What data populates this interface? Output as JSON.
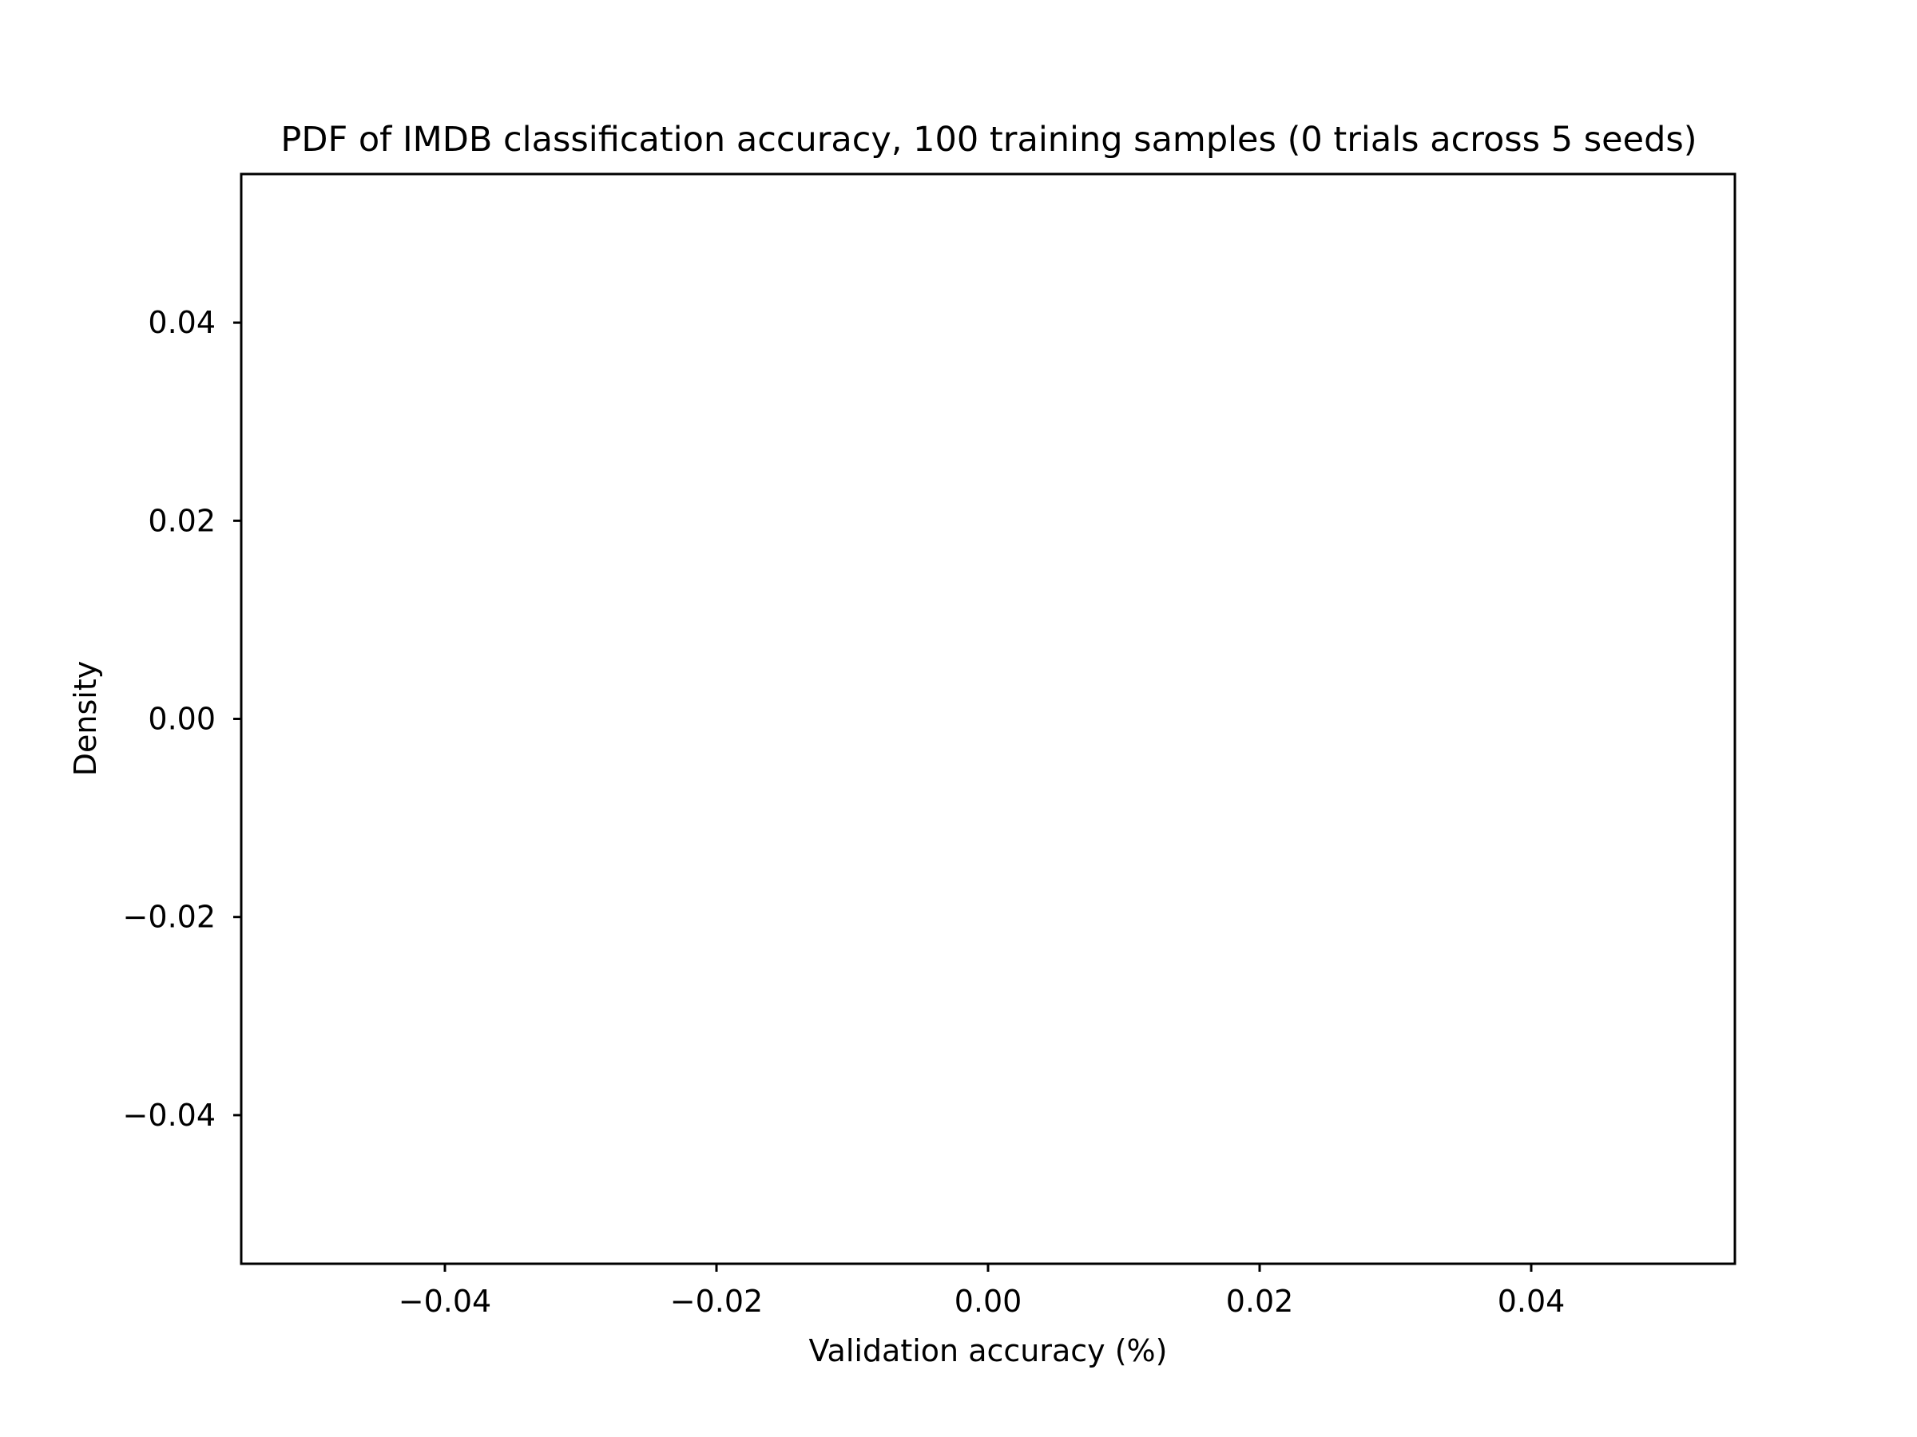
{
  "chart_data": {
    "type": "line",
    "title": "PDF of IMDB classification accuracy, 100 training samples (0 trials across 5 seeds)",
    "xlabel": "Validation accuracy (%)",
    "ylabel": "Density",
    "xlim": [
      -0.055,
      0.055
    ],
    "ylim": [
      -0.055,
      0.055
    ],
    "x_ticks": [
      {
        "value": -0.04,
        "label": "−0.04"
      },
      {
        "value": -0.02,
        "label": "−0.02"
      },
      {
        "value": 0.0,
        "label": "0.00"
      },
      {
        "value": 0.02,
        "label": "0.02"
      },
      {
        "value": 0.04,
        "label": "0.04"
      }
    ],
    "y_ticks": [
      {
        "value": -0.04,
        "label": "−0.04"
      },
      {
        "value": -0.02,
        "label": "−0.02"
      },
      {
        "value": 0.0,
        "label": "0.00"
      },
      {
        "value": 0.02,
        "label": "0.02"
      },
      {
        "value": 0.04,
        "label": "0.04"
      }
    ],
    "series": [],
    "grid": false,
    "legend": "none",
    "colors": {
      "axis": "#000000",
      "background": "#ffffff",
      "text": "#000000"
    }
  }
}
